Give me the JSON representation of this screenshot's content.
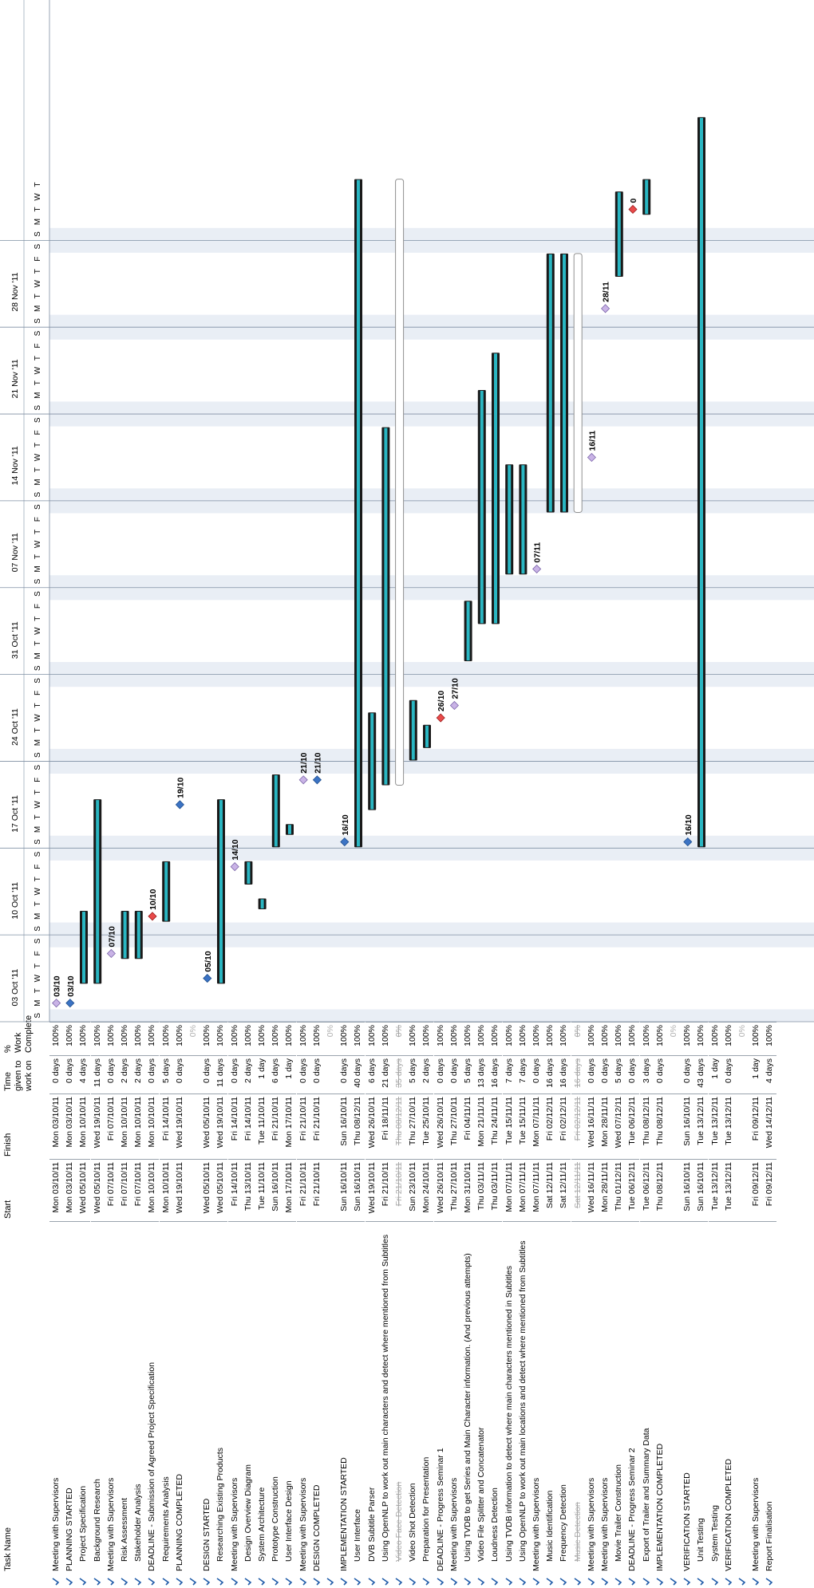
{
  "columns": {
    "task_name": "Task Name",
    "start": "Start",
    "finish": "Finish",
    "time_given": "Time given to work on",
    "pct": "% Work Complete"
  },
  "timeline": {
    "weeks": [
      "03 Oct '11",
      "10 Oct '11",
      "17 Oct '11",
      "24 Oct '11",
      "31 Oct '11",
      "07 Nov '11",
      "14 Nov '11",
      "21 Nov '11",
      "28 Nov '11"
    ],
    "day_letters": [
      "S",
      "M",
      "T",
      "W",
      "T",
      "F",
      "S"
    ]
  },
  "chart_data": {
    "type": "gantt",
    "axis_start": "2011-10-02",
    "tasks": [
      {
        "name": "Meeting with Supervisors",
        "indent": 0,
        "start": "Mon 03/10/11",
        "finish": "Mon 03/10/11",
        "given": "0 days",
        "pct": "100%",
        "kind": "milestone",
        "label": "03/10",
        "s": "2011-10-03",
        "f": "2011-10-03"
      },
      {
        "name": "PLANNING STARTED",
        "indent": 0,
        "start": "Mon 03/10/11",
        "finish": "Mon 03/10/11",
        "given": "0 days",
        "pct": "100%",
        "kind": "milestone-blue",
        "label": "03/10",
        "s": "2011-10-03",
        "f": "2011-10-03"
      },
      {
        "name": "Project Specification",
        "indent": 2,
        "start": "Wed 05/10/11",
        "finish": "Mon 10/10/11",
        "given": "4 days",
        "pct": "100%",
        "kind": "bar",
        "s": "2011-10-05",
        "f": "2011-10-10"
      },
      {
        "name": "Background Research",
        "indent": 2,
        "start": "Wed 05/10/11",
        "finish": "Wed 19/10/11",
        "given": "11 days",
        "pct": "100%",
        "kind": "bar",
        "s": "2011-10-05",
        "f": "2011-10-19"
      },
      {
        "name": "Meeting with Supervisors",
        "indent": 0,
        "start": "Fri 07/10/11",
        "finish": "Fri 07/10/11",
        "given": "0 days",
        "pct": "100%",
        "kind": "milestone",
        "label": "07/10",
        "s": "2011-10-07",
        "f": "2011-10-07"
      },
      {
        "name": "Risk Assessment",
        "indent": 2,
        "start": "Fri 07/10/11",
        "finish": "Mon 10/10/11",
        "given": "2 days",
        "pct": "100%",
        "kind": "bar",
        "s": "2011-10-07",
        "f": "2011-10-10"
      },
      {
        "name": "Stakeholder Analysis",
        "indent": 2,
        "start": "Fri 07/10/11",
        "finish": "Mon 10/10/11",
        "given": "2 days",
        "pct": "100%",
        "kind": "bar",
        "s": "2011-10-07",
        "f": "2011-10-10"
      },
      {
        "name": "DEADLINE - Submission of Agreed Project Specification",
        "indent": 0,
        "start": "Mon 10/10/11",
        "finish": "Mon 10/10/11",
        "given": "0 days",
        "pct": "100%",
        "kind": "milestone-red",
        "label": "10/10",
        "s": "2011-10-10",
        "f": "2011-10-10"
      },
      {
        "name": "Requirements Analysis",
        "indent": 2,
        "start": "Mon 10/10/11",
        "finish": "Fri 14/10/11",
        "given": "5 days",
        "pct": "100%",
        "kind": "bar",
        "s": "2011-10-10",
        "f": "2011-10-14"
      },
      {
        "name": "PLANNING COMPLETED",
        "indent": 0,
        "start": "Wed 19/10/11",
        "finish": "Wed 19/10/11",
        "given": "0 days",
        "pct": "100%",
        "kind": "milestone-blue",
        "label": "19/10",
        "s": "2011-10-19",
        "f": "2011-10-19"
      },
      {
        "name": "",
        "indent": 0,
        "start": "",
        "finish": "",
        "given": "",
        "pct": "0%",
        "kind": "blank"
      },
      {
        "name": "DESIGN STARTED",
        "indent": 0,
        "start": "Wed 05/10/11",
        "finish": "Wed 05/10/11",
        "given": "0 days",
        "pct": "100%",
        "kind": "milestone-blue",
        "label": "05/10",
        "s": "2011-10-05",
        "f": "2011-10-05"
      },
      {
        "name": "Researching Existing Products",
        "indent": 2,
        "start": "Wed 05/10/11",
        "finish": "Wed 19/10/11",
        "given": "11 days",
        "pct": "100%",
        "kind": "bar",
        "s": "2011-10-05",
        "f": "2011-10-19"
      },
      {
        "name": "Meeting with Supervisors",
        "indent": 0,
        "start": "Fri 14/10/11",
        "finish": "Fri 14/10/11",
        "given": "0 days",
        "pct": "100%",
        "kind": "milestone",
        "label": "14/10",
        "s": "2011-10-14",
        "f": "2011-10-14"
      },
      {
        "name": "Design Overview Diagram",
        "indent": 2,
        "start": "Thu 13/10/11",
        "finish": "Fri 14/10/11",
        "given": "2 days",
        "pct": "100%",
        "kind": "bar",
        "s": "2011-10-13",
        "f": "2011-10-14"
      },
      {
        "name": "System Architecture",
        "indent": 2,
        "start": "Tue 11/10/11",
        "finish": "Tue 11/10/11",
        "given": "1 day",
        "pct": "100%",
        "kind": "bar",
        "s": "2011-10-11",
        "f": "2011-10-11"
      },
      {
        "name": "Prototype Construction",
        "indent": 2,
        "start": "Sun 16/10/11",
        "finish": "Fri 21/10/11",
        "given": "6 days",
        "pct": "100%",
        "kind": "bar",
        "s": "2011-10-16",
        "f": "2011-10-21"
      },
      {
        "name": "User Interface Design",
        "indent": 2,
        "start": "Mon 17/10/11",
        "finish": "Mon 17/10/11",
        "given": "1 day",
        "pct": "100%",
        "kind": "bar",
        "s": "2011-10-17",
        "f": "2011-10-17"
      },
      {
        "name": "Meeting with Supervisors",
        "indent": 0,
        "start": "Fri 21/10/11",
        "finish": "Fri 21/10/11",
        "given": "0 days",
        "pct": "100%",
        "kind": "milestone",
        "label": "21/10",
        "s": "2011-10-21",
        "f": "2011-10-21"
      },
      {
        "name": "DESIGN COMPLETED",
        "indent": 0,
        "start": "Fri 21/10/11",
        "finish": "Fri 21/10/11",
        "given": "0 days",
        "pct": "100%",
        "kind": "milestone-blue",
        "label": "21/10",
        "s": "2011-10-21",
        "f": "2011-10-21"
      },
      {
        "name": "",
        "indent": 0,
        "start": "",
        "finish": "",
        "given": "",
        "pct": "0%",
        "kind": "blank"
      },
      {
        "name": "IMPLEMENTATION STARTED",
        "indent": 0,
        "start": "Sun 16/10/11",
        "finish": "Sun 16/10/11",
        "given": "0 days",
        "pct": "100%",
        "kind": "milestone-blue",
        "label": "16/10",
        "s": "2011-10-16",
        "f": "2011-10-16"
      },
      {
        "name": "User Interface",
        "indent": 2,
        "start": "Sun 16/10/11",
        "finish": "Thu 08/12/11",
        "given": "40 days",
        "pct": "100%",
        "kind": "bar",
        "s": "2011-10-16",
        "f": "2011-12-08"
      },
      {
        "name": "DVB Subtitle Parser",
        "indent": 2,
        "start": "Wed 19/10/11",
        "finish": "Wed 26/10/11",
        "given": "6 days",
        "pct": "100%",
        "kind": "bar",
        "s": "2011-10-19",
        "f": "2011-10-26"
      },
      {
        "name": "Using OpenNLP to work out main characters and detect where mentioned from Subtitles",
        "indent": 2,
        "start": "Fri 21/10/11",
        "finish": "Fri 18/11/11",
        "given": "21 days",
        "pct": "100%",
        "kind": "bar",
        "s": "2011-10-21",
        "f": "2011-11-18"
      },
      {
        "name": "Video Face Detection",
        "indent": 2,
        "start": "Fri 21/10/11",
        "finish": "Thu 08/12/11",
        "given": "35 days",
        "pct": "0%",
        "kind": "hollow",
        "grey": true,
        "s": "2011-10-21",
        "f": "2011-12-08"
      },
      {
        "name": "Video Shot Detection",
        "indent": 2,
        "start": "Sun 23/10/11",
        "finish": "Thu 27/10/11",
        "given": "5 days",
        "pct": "100%",
        "kind": "bar",
        "s": "2011-10-23",
        "f": "2011-10-27"
      },
      {
        "name": "Preparation for Presentation",
        "indent": 2,
        "start": "Mon 24/10/11",
        "finish": "Tue 25/10/11",
        "given": "2 days",
        "pct": "100%",
        "kind": "bar",
        "s": "2011-10-24",
        "f": "2011-10-25"
      },
      {
        "name": "DEADLINE - Progress Seminar 1",
        "indent": 0,
        "start": "Wed 26/10/11",
        "finish": "Wed 26/10/11",
        "given": "0 days",
        "pct": "100%",
        "kind": "milestone-red",
        "label": "26/10",
        "s": "2011-10-26",
        "f": "2011-10-26"
      },
      {
        "name": "Meeting with Supervisors",
        "indent": 0,
        "start": "Thu 27/10/11",
        "finish": "Thu 27/10/11",
        "given": "0 days",
        "pct": "100%",
        "kind": "milestone",
        "label": "27/10",
        "s": "2011-10-27",
        "f": "2011-10-27"
      },
      {
        "name": "Using TVDB to get Series and Main Character information. (And previous attempts)",
        "indent": 2,
        "start": "Mon 31/10/11",
        "finish": "Fri 04/11/11",
        "given": "5 days",
        "pct": "100%",
        "kind": "bar",
        "s": "2011-10-31",
        "f": "2011-11-04"
      },
      {
        "name": "Video File Splitter and Concatenator",
        "indent": 2,
        "start": "Thu 03/11/11",
        "finish": "Mon 21/11/11",
        "given": "13 days",
        "pct": "100%",
        "kind": "bar",
        "s": "2011-11-03",
        "f": "2011-11-21"
      },
      {
        "name": "Loudness Detection",
        "indent": 2,
        "start": "Thu 03/11/11",
        "finish": "Thu 24/11/11",
        "given": "16 days",
        "pct": "100%",
        "kind": "bar",
        "s": "2011-11-03",
        "f": "2011-11-24"
      },
      {
        "name": "Using TVDB information to detect where main characters mentioned in Subtitles",
        "indent": 2,
        "start": "Mon 07/11/11",
        "finish": "Tue 15/11/11",
        "given": "7 days",
        "pct": "100%",
        "kind": "bar",
        "s": "2011-11-07",
        "f": "2011-11-15"
      },
      {
        "name": "Using OpenNLP to work out main locations and detect where mentioned from Subtitles",
        "indent": 2,
        "start": "Mon 07/11/11",
        "finish": "Tue 15/11/11",
        "given": "7 days",
        "pct": "100%",
        "kind": "bar",
        "s": "2011-11-07",
        "f": "2011-11-15"
      },
      {
        "name": "Meeting with Supervisors",
        "indent": 0,
        "start": "Mon 07/11/11",
        "finish": "Mon 07/11/11",
        "given": "0 days",
        "pct": "100%",
        "kind": "milestone",
        "label": "07/11",
        "s": "2011-11-07",
        "f": "2011-11-07"
      },
      {
        "name": "Music Identification",
        "indent": 2,
        "start": "Sat 12/11/11",
        "finish": "Fri 02/12/11",
        "given": "16 days",
        "pct": "100%",
        "kind": "bar",
        "s": "2011-11-12",
        "f": "2011-12-02"
      },
      {
        "name": "Frequency Detection",
        "indent": 2,
        "start": "Sat 12/11/11",
        "finish": "Fri 02/12/11",
        "given": "16 days",
        "pct": "100%",
        "kind": "bar",
        "s": "2011-11-12",
        "f": "2011-12-02"
      },
      {
        "name": "Music Detection",
        "indent": 2,
        "start": "Sat 12/11/11",
        "finish": "Fri 02/12/11",
        "given": "16 days",
        "pct": "0%",
        "kind": "hollow",
        "grey": true,
        "s": "2011-11-12",
        "f": "2011-12-02"
      },
      {
        "name": "Meeting with Supervisors",
        "indent": 0,
        "start": "Wed 16/11/11",
        "finish": "Wed 16/11/11",
        "given": "0 days",
        "pct": "100%",
        "kind": "milestone",
        "label": "16/11",
        "s": "2011-11-16",
        "f": "2011-11-16"
      },
      {
        "name": "Meeting with Supervisors",
        "indent": 0,
        "start": "Mon 28/11/11",
        "finish": "Mon 28/11/11",
        "given": "0 days",
        "pct": "100%",
        "kind": "milestone",
        "label": "28/11",
        "s": "2011-11-28",
        "f": "2011-11-28"
      },
      {
        "name": "Movie Trailer Construction",
        "indent": 2,
        "start": "Thu 01/12/11",
        "finish": "Wed 07/12/11",
        "given": "5 days",
        "pct": "100%",
        "kind": "bar",
        "s": "2011-12-01",
        "f": "2011-12-07"
      },
      {
        "name": "DEADLINE - Progress Seminar 2",
        "indent": 0,
        "start": "Tue 06/12/11",
        "finish": "Tue 06/12/11",
        "given": "0 days",
        "pct": "100%",
        "kind": "milestone-red",
        "label": "0",
        "s": "2011-12-06",
        "f": "2011-12-06"
      },
      {
        "name": "Export of Trailer and Summary Data",
        "indent": 2,
        "start": "Tue 06/12/11",
        "finish": "Thu 08/12/11",
        "given": "3 days",
        "pct": "100%",
        "kind": "bar",
        "s": "2011-12-06",
        "f": "2011-12-08"
      },
      {
        "name": "IMPLEMENTATION COMPLETED",
        "indent": 0,
        "start": "Thu 08/12/11",
        "finish": "Thu 08/12/11",
        "given": "0 days",
        "pct": "100%",
        "kind": "none"
      },
      {
        "name": "",
        "indent": 0,
        "start": "",
        "finish": "",
        "given": "",
        "pct": "0%",
        "kind": "blank"
      },
      {
        "name": "VERIFICATION STARTED",
        "indent": 0,
        "start": "Sun 16/10/11",
        "finish": "Sun 16/10/11",
        "given": "0 days",
        "pct": "100%",
        "kind": "milestone-blue",
        "label": "16/10",
        "s": "2011-10-16",
        "f": "2011-10-16"
      },
      {
        "name": "Unit Testing",
        "indent": 2,
        "start": "Sun 16/10/11",
        "finish": "Tue 13/12/11",
        "given": "43 days",
        "pct": "100%",
        "kind": "bar",
        "s": "2011-10-16",
        "f": "2011-12-13"
      },
      {
        "name": "System Testing",
        "indent": 2,
        "start": "Tue 13/12/11",
        "finish": "Tue 13/12/11",
        "given": "1 day",
        "pct": "100%",
        "kind": "none"
      },
      {
        "name": "VERIFICATION COMPLETED",
        "indent": 0,
        "start": "Tue 13/12/11",
        "finish": "Tue 13/12/11",
        "given": "0 days",
        "pct": "100%",
        "kind": "none"
      },
      {
        "name": "",
        "indent": 0,
        "start": "",
        "finish": "",
        "given": "",
        "pct": "0%",
        "kind": "blank"
      },
      {
        "name": "Meeting with Supervisors",
        "indent": 0,
        "start": "Fri 09/12/11",
        "finish": "Fri 09/12/11",
        "given": "1 day",
        "pct": "100%",
        "kind": "none"
      },
      {
        "name": "Report Finalisation",
        "indent": 0,
        "start": "Fri 09/12/11",
        "finish": "Wed 14/12/11",
        "given": "4 days",
        "pct": "100%",
        "kind": "none"
      }
    ]
  }
}
